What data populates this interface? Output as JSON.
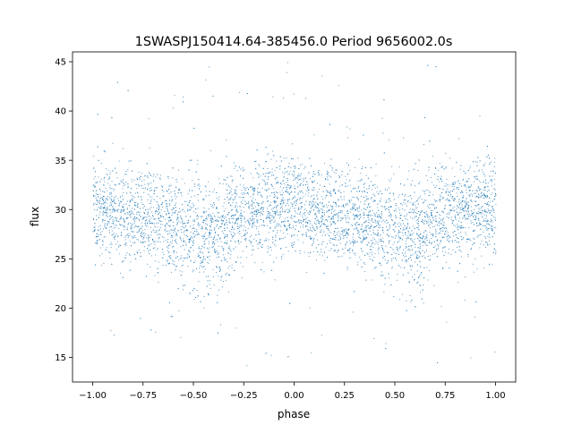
{
  "chart_data": {
    "type": "scatter",
    "title": "1SWASPJ150414.64-385456.0 Period 9656002.0s",
    "xlabel": "phase",
    "ylabel": "flux",
    "xlim": [
      -1.1,
      1.1
    ],
    "ylim": [
      12.5,
      46.0
    ],
    "xticks": [
      -1.0,
      -0.75,
      -0.5,
      -0.25,
      0.0,
      0.25,
      0.5,
      0.75,
      1.0
    ],
    "xtick_labels": [
      "−1.00",
      "−0.75",
      "−0.50",
      "−0.25",
      "0.00",
      "0.25",
      "0.50",
      "0.75",
      "1.00"
    ],
    "yticks": [
      15,
      20,
      25,
      30,
      35,
      40,
      45
    ],
    "ytick_labels": [
      "15",
      "20",
      "25",
      "30",
      "35",
      "40",
      "45"
    ],
    "grid": false,
    "marker_color": "#1f77b4",
    "series": [
      {
        "x": [
          -1.0,
          -0.95,
          -0.9,
          -0.85,
          -0.8,
          -0.75,
          -0.7,
          -0.65,
          -0.6,
          -0.55,
          -0.5,
          -0.45,
          -0.4,
          -0.35,
          -0.3,
          -0.25,
          -0.2,
          -0.15,
          -0.1,
          -0.05,
          0.0,
          0.05,
          0.1,
          0.15,
          0.2,
          0.25,
          0.3,
          0.35,
          0.4,
          0.45,
          0.5,
          0.55,
          0.6,
          0.65,
          0.7,
          0.75,
          0.8,
          0.85,
          0.9,
          0.95,
          1.0
        ],
        "y_center": [
          30.2,
          30.0,
          29.6,
          29.4,
          29.6,
          29.3,
          29.2,
          29.0,
          28.6,
          28.0,
          27.8,
          27.4,
          27.3,
          28.0,
          29.2,
          29.6,
          29.8,
          30.0,
          30.2,
          30.4,
          30.2,
          30.0,
          29.6,
          29.4,
          29.6,
          29.3,
          29.2,
          29.0,
          28.6,
          28.0,
          27.8,
          27.4,
          27.3,
          28.0,
          29.2,
          29.6,
          29.8,
          30.0,
          30.2,
          30.4,
          30.2
        ],
        "y_core_low": [
          25.0,
          25.5,
          25.5,
          25.0,
          25.0,
          24.8,
          24.5,
          24.0,
          23.0,
          22.0,
          21.0,
          20.5,
          20.0,
          22.0,
          24.5,
          25.0,
          25.5,
          25.5,
          26.0,
          26.0,
          25.5,
          25.5,
          25.0,
          25.0,
          25.0,
          24.8,
          24.5,
          24.0,
          23.0,
          22.0,
          21.0,
          20.5,
          20.0,
          22.0,
          24.5,
          25.0,
          25.5,
          25.5,
          26.0,
          26.0,
          25.0
        ],
        "y_core_high": [
          36.0,
          34.5,
          34.0,
          34.5,
          34.5,
          34.0,
          34.0,
          33.5,
          33.5,
          33.0,
          33.0,
          33.0,
          32.5,
          33.5,
          34.0,
          34.5,
          35.0,
          35.5,
          35.5,
          35.5,
          36.0,
          34.5,
          34.0,
          34.5,
          34.5,
          34.0,
          34.0,
          33.5,
          33.5,
          33.0,
          33.0,
          33.0,
          32.5,
          33.5,
          34.0,
          34.5,
          35.0,
          35.5,
          35.5,
          35.5,
          36.0
        ],
        "y_scatter_min": 14.0,
        "y_scatter_max": 45.0
      }
    ]
  }
}
